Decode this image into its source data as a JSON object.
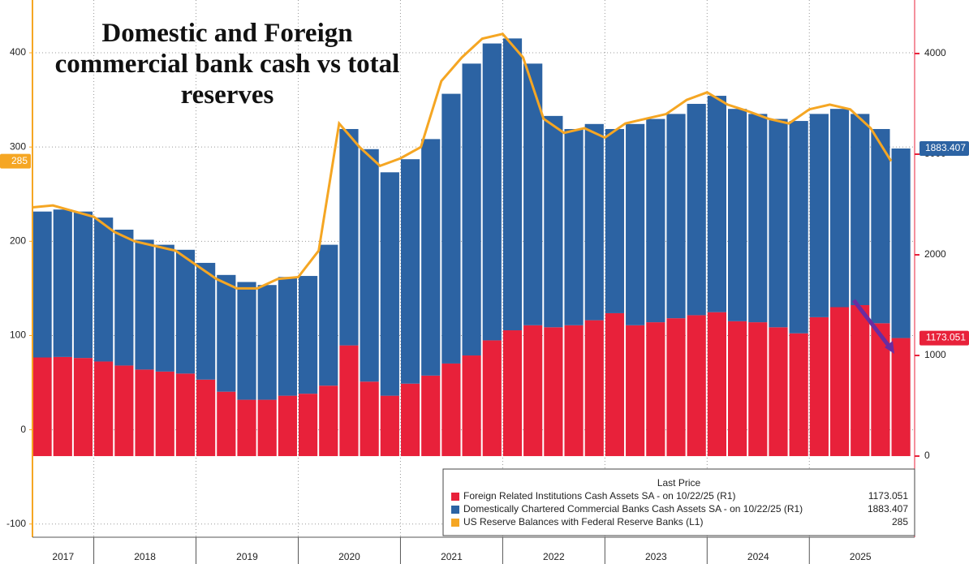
{
  "chart_data": {
    "type": "bar",
    "stacked": true,
    "title": "Domestic and Foreign commercial bank cash vs total reserves",
    "legend_title": "Last Price",
    "x": [
      2017.4,
      2017.6,
      2017.8,
      2018.0,
      2018.2,
      2018.4,
      2018.6,
      2018.8,
      2019.0,
      2019.2,
      2019.4,
      2019.6,
      2019.8,
      2020.0,
      2020.2,
      2020.4,
      2020.6,
      2020.8,
      2021.0,
      2021.2,
      2021.4,
      2021.6,
      2021.8,
      2022.0,
      2022.2,
      2022.4,
      2022.6,
      2022.8,
      2023.0,
      2023.2,
      2023.4,
      2023.6,
      2023.8,
      2024.0,
      2024.2,
      2024.4,
      2024.6,
      2024.8,
      2025.0,
      2025.2,
      2025.4,
      2025.6,
      2025.8
    ],
    "xlim": [
      2017.4,
      2026.03
    ],
    "xticks": [
      2017,
      2018,
      2019,
      2020,
      2021,
      2022,
      2023,
      2024,
      2025
    ],
    "ylim": [
      -114,
      456
    ],
    "yticks": [
      -100,
      0,
      100,
      200,
      300,
      400
    ],
    "y2lim": [
      -806,
      4532
    ],
    "y2ticks": [
      0,
      1000,
      2000,
      3000,
      4000
    ],
    "grid": true,
    "series": [
      {
        "name": "Foreign Related Institutions Cash Assets SA -  on 10/22/25  (R1)",
        "color": "#e8213a",
        "axis": "y2",
        "type": "bar",
        "values": [
          980,
          985,
          975,
          940,
          900,
          860,
          840,
          820,
          760,
          640,
          560,
          560,
          600,
          620,
          700,
          1100,
          740,
          600,
          720,
          800,
          920,
          1000,
          1150,
          1250,
          1300,
          1280,
          1300,
          1350,
          1420,
          1300,
          1330,
          1370,
          1400,
          1430,
          1340,
          1330,
          1280,
          1220,
          1380,
          1480,
          1500,
          1320,
          1173.051
        ]
      },
      {
        "name": "Domestically Chartered Commercial Banks Cash Assets SA -  on 10/22/25  (R1)",
        "color": "#2c63a3",
        "axis": "y2",
        "type": "bar",
        "values": [
          1450,
          1465,
          1455,
          1430,
          1350,
          1290,
          1260,
          1230,
          1160,
          1160,
          1170,
          1140,
          1180,
          1170,
          1400,
          2150,
          2310,
          2220,
          2230,
          2350,
          2680,
          2900,
          2950,
          2900,
          2600,
          2100,
          1950,
          1950,
          1830,
          2000,
          2020,
          2030,
          2100,
          2150,
          2110,
          2070,
          2070,
          2110,
          2020,
          1970,
          1900,
          1930,
          1883.407
        ]
      },
      {
        "name": "US Reserve Balances with Federal Reserve Banks  (L1)",
        "color": "#f5a623",
        "axis": "y",
        "type": "line",
        "values": [
          236,
          238,
          232,
          226,
          210,
          200,
          195,
          190,
          175,
          160,
          150,
          150,
          160,
          162,
          190,
          325,
          300,
          280,
          288,
          300,
          370,
          395,
          415,
          420,
          395,
          330,
          315,
          320,
          310,
          325,
          330,
          335,
          350,
          358,
          345,
          338,
          330,
          325,
          340,
          345,
          340,
          320,
          285
        ]
      }
    ]
  }
}
